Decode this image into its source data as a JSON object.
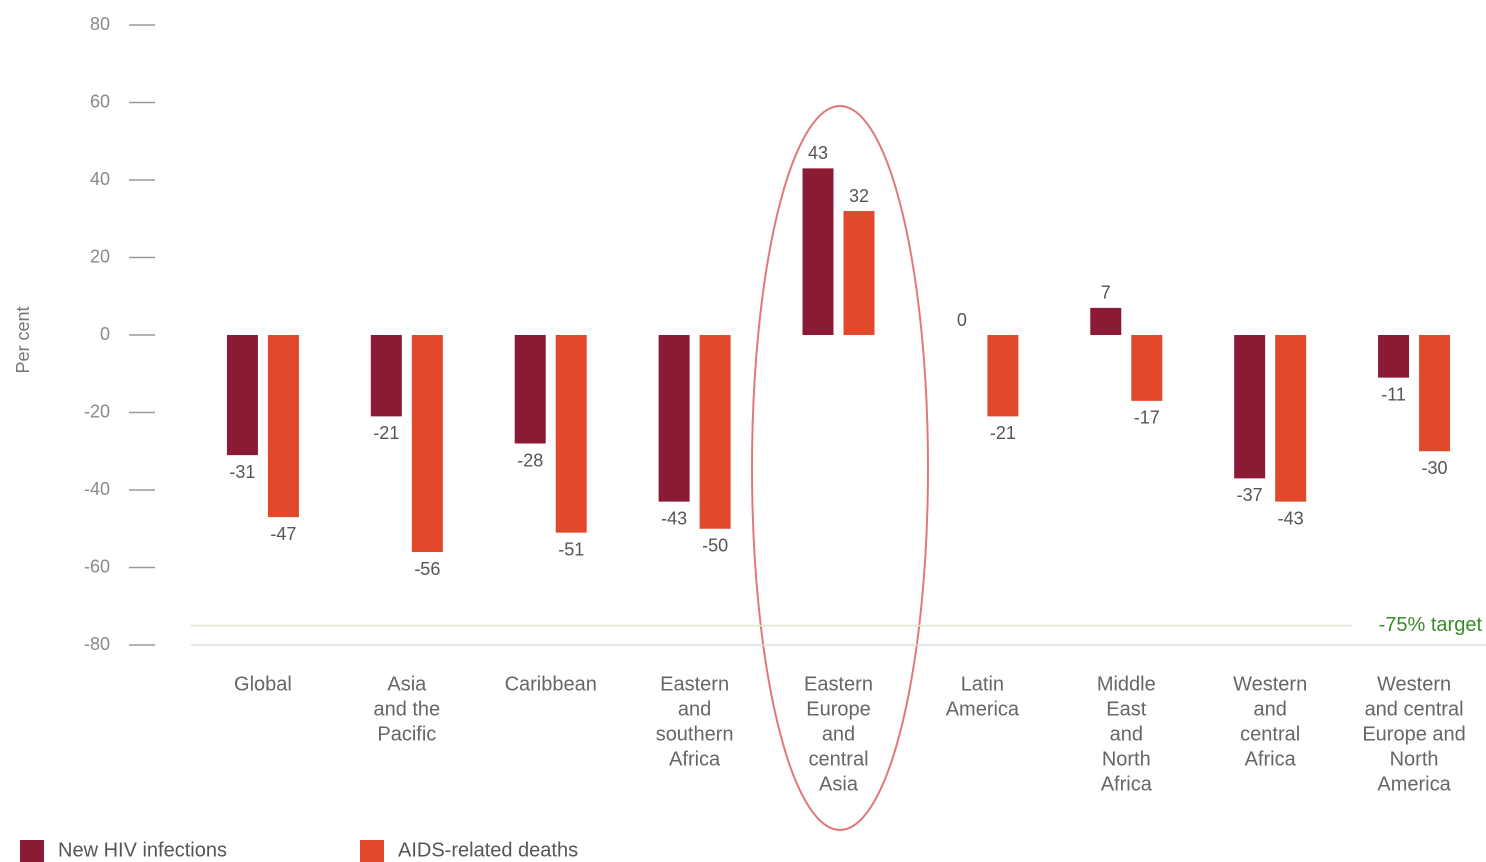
{
  "chart_data": {
    "type": "bar",
    "y_label": "Per cent",
    "categories": [
      [
        "Global"
      ],
      [
        "Asia",
        "and the",
        "Pacific"
      ],
      [
        "Caribbean"
      ],
      [
        "Eastern",
        "and",
        "southern",
        "Africa"
      ],
      [
        "Eastern",
        "Europe",
        "and",
        "central",
        "Asia"
      ],
      [
        "Latin",
        "America"
      ],
      [
        "Middle",
        "East",
        "and",
        "North",
        "Africa"
      ],
      [
        "Western",
        "and",
        "central",
        "Africa"
      ],
      [
        "Western",
        "and central",
        "Europe and",
        "North",
        "America"
      ]
    ],
    "series": [
      {
        "name": "New HIV infections",
        "color": "#8b1a35",
        "values": [
          -31,
          -21,
          -28,
          -43,
          43,
          0,
          7,
          -37,
          -11
        ]
      },
      {
        "name": "AIDS-related deaths",
        "color": "#e2492b",
        "values": [
          -47,
          -56,
          -51,
          -50,
          32,
          -21,
          -17,
          -43,
          -30
        ]
      }
    ],
    "ylim": [
      -80,
      80
    ],
    "yticks": [
      -80,
      -60,
      -40,
      -20,
      0,
      20,
      40,
      60,
      80
    ],
    "target": {
      "value": -75,
      "label": "-75% target",
      "color": "#3a8a2a"
    },
    "legend": "bottom-left"
  }
}
